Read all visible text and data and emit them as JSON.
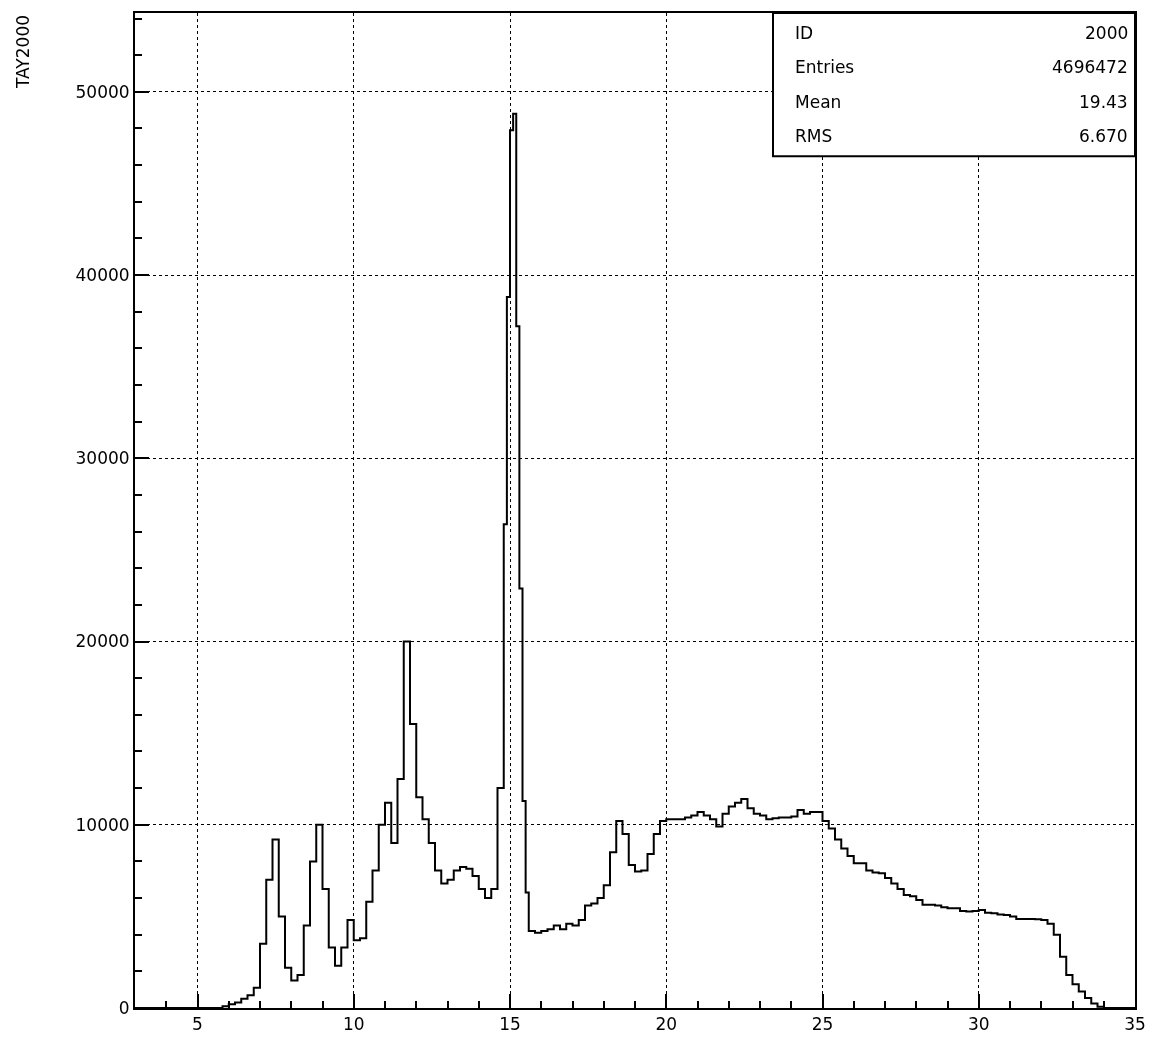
{
  "chart_data": {
    "type": "histogram",
    "ylabel": "TAY2000",
    "annotations": [
      "ID 2000",
      "Entries 4696472",
      "Mean 19.43",
      "RMS 6.670"
    ],
    "bins": [
      3.0,
      3.2,
      3.4,
      3.6,
      3.8,
      4.0,
      4.2,
      4.4,
      4.6,
      4.8,
      5.0,
      5.2,
      5.4,
      5.6,
      5.8,
      6.0,
      6.2,
      6.4,
      6.6,
      6.8,
      7.0,
      7.2,
      7.4,
      7.6,
      7.8,
      8.0,
      8.2,
      8.4,
      8.6,
      8.8,
      9.0,
      9.2,
      9.4,
      9.6,
      9.8,
      10.0,
      10.2,
      10.4,
      10.6,
      10.8,
      11.0,
      11.2,
      11.4,
      11.6,
      11.8,
      12.0,
      12.2,
      12.4,
      12.6,
      12.8,
      13.0,
      13.2,
      13.4,
      13.6,
      13.8,
      14.0,
      14.2,
      14.4,
      14.6,
      14.8,
      14.9,
      15.0,
      15.1,
      15.2,
      15.3,
      15.4,
      15.5,
      15.6,
      15.8,
      16.0,
      16.2,
      16.4,
      16.6,
      16.8,
      17.0,
      17.2,
      17.4,
      17.6,
      17.8,
      18.0,
      18.2,
      18.4,
      18.6,
      18.8,
      19.0,
      19.2,
      19.4,
      19.6,
      19.8,
      20.0,
      20.2,
      20.4,
      20.6,
      20.8,
      21.0,
      21.2,
      21.4,
      21.6,
      21.8,
      22.0,
      22.2,
      22.4,
      22.6,
      22.8,
      23.0,
      23.2,
      23.4,
      23.6,
      23.8,
      24.0,
      24.2,
      24.4,
      24.6,
      24.8,
      25.0,
      25.2,
      25.4,
      25.6,
      25.8,
      26.0,
      26.2,
      26.4,
      26.6,
      26.8,
      27.0,
      27.2,
      27.4,
      27.6,
      27.8,
      28.0,
      28.2,
      28.4,
      28.6,
      28.8,
      29.0,
      29.2,
      29.4,
      29.6,
      29.8,
      30.0,
      30.2,
      30.4,
      30.6,
      30.8,
      31.0,
      31.2,
      31.4,
      31.6,
      31.8,
      32.0,
      32.2,
      32.4,
      32.6,
      32.8,
      33.0,
      33.2,
      33.4,
      33.6,
      33.8,
      34.0,
      34.2,
      34.4,
      34.6,
      34.8,
      35.0
    ],
    "values": [
      0,
      0,
      0,
      0,
      0,
      0,
      0,
      0,
      0,
      0,
      0,
      0,
      0,
      0,
      100,
      200,
      300,
      500,
      700,
      1100,
      3500,
      7000,
      9200,
      5000,
      2200,
      1500,
      1800,
      4500,
      8000,
      10000,
      6500,
      3300,
      2300,
      3300,
      4800,
      3700,
      3800,
      5800,
      7500,
      10000,
      11200,
      9000,
      12500,
      20000,
      15500,
      11500,
      10300,
      9000,
      7500,
      6800,
      7000,
      7500,
      7700,
      7600,
      7200,
      6500,
      6000,
      6500,
      12000,
      26400,
      38800,
      47900,
      48800,
      37200,
      22900,
      11300,
      6300,
      4200,
      4100,
      4200,
      4300,
      4500,
      4300,
      4600,
      4500,
      4800,
      5600,
      5700,
      6000,
      6700,
      8500,
      10200,
      9500,
      7800,
      7450,
      7500,
      8400,
      9500,
      10200,
      10300,
      10300,
      10300,
      10400,
      10500,
      10700,
      10500,
      10300,
      9900,
      10600,
      11000,
      11200,
      11400,
      10900,
      10600,
      10500,
      10300,
      10350,
      10400,
      10400,
      10450,
      10800,
      10600,
      10700,
      10700,
      10200,
      9800,
      9200,
      8700,
      8300,
      7900,
      7900,
      7500,
      7400,
      7350,
      7100,
      6800,
      6500,
      6170,
      6100,
      5900,
      5630,
      5630,
      5600,
      5500,
      5440,
      5440,
      5300,
      5260,
      5300,
      5350,
      5200,
      5170,
      5100,
      5080,
      5000,
      4860,
      4860,
      4860,
      4850,
      4800,
      4600,
      4000,
      2800,
      1800,
      1300,
      900,
      550,
      250,
      70,
      0,
      0,
      0,
      0,
      0
    ],
    "color": "#000000",
    "xlim": [
      3,
      35
    ],
    "xticks": [
      {
        "value": 4,
        "label": null
      },
      5,
      {
        "value": 6,
        "label": null
      },
      {
        "value": 7,
        "label": null
      },
      {
        "value": 8,
        "label": null
      },
      {
        "value": 9,
        "label": null
      },
      10,
      {
        "value": 11,
        "label": null
      },
      {
        "value": 12,
        "label": null
      },
      {
        "value": 13,
        "label": null
      },
      {
        "value": 14,
        "label": null
      },
      15,
      {
        "value": 16,
        "label": null
      },
      {
        "value": 17,
        "label": null
      },
      {
        "value": 18,
        "label": null
      },
      {
        "value": 19,
        "label": null
      },
      20,
      {
        "value": 21,
        "label": null
      },
      {
        "value": 22,
        "label": null
      },
      {
        "value": 23,
        "label": null
      },
      {
        "value": 24,
        "label": null
      },
      25,
      {
        "value": 26,
        "label": null
      },
      {
        "value": 27,
        "label": null
      },
      {
        "value": 28,
        "label": null
      },
      {
        "value": 29,
        "label": null
      },
      30,
      {
        "value": 31,
        "label": null
      },
      {
        "value": 32,
        "label": null
      },
      {
        "value": 33,
        "label": null
      },
      {
        "value": 34,
        "label": null
      },
      35
    ],
    "ylim": [
      0,
      54300
    ],
    "yticks": [
      0,
      {
        "value": 2000,
        "label": null
      },
      {
        "value": 4000,
        "label": null
      },
      {
        "value": 6000,
        "label": null
      },
      {
        "value": 8000,
        "label": null
      },
      10000,
      {
        "value": 12000,
        "label": null
      },
      {
        "value": 14000,
        "label": null
      },
      {
        "value": 16000,
        "label": null
      },
      {
        "value": 18000,
        "label": null
      },
      20000,
      {
        "value": 22000,
        "label": null
      },
      {
        "value": 24000,
        "label": null
      },
      {
        "value": 26000,
        "label": null
      },
      {
        "value": 28000,
        "label": null
      },
      30000,
      {
        "value": 32000,
        "label": null
      },
      {
        "value": 34000,
        "label": null
      },
      {
        "value": 36000,
        "label": null
      },
      {
        "value": 38000,
        "label": null
      },
      40000,
      {
        "value": 42000,
        "label": null
      },
      {
        "value": 44000,
        "label": null
      },
      {
        "value": 46000,
        "label": null
      },
      {
        "value": 48000,
        "label": null
      },
      50000,
      {
        "value": 52000,
        "label": null
      },
      {
        "value": 54000,
        "label": null
      }
    ],
    "grid": true,
    "line_style": "solid"
  }
}
